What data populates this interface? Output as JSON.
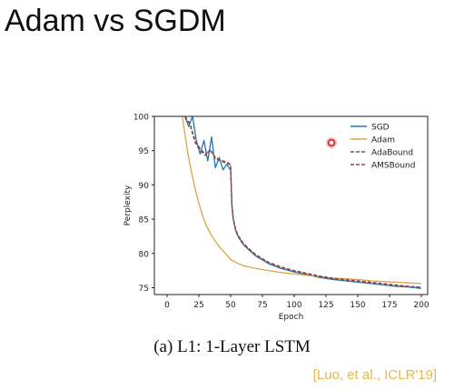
{
  "slide": {
    "title": "Adam vs SGDM",
    "caption": "(a) L1: 1-Layer LSTM",
    "citation": "[Luo, et al., ICLR'19]"
  },
  "chart_data": {
    "type": "line",
    "title": "",
    "xlabel": "Epoch",
    "ylabel": "Perplexity",
    "xlim": [
      -10,
      205
    ],
    "ylim": [
      74,
      100
    ],
    "xticks": [
      0,
      25,
      50,
      75,
      100,
      125,
      150,
      175,
      200
    ],
    "yticks": [
      75,
      80,
      85,
      90,
      95,
      100
    ],
    "legend_position": "top-right",
    "grid": false,
    "series": [
      {
        "name": "SGD",
        "color": "#1f77b4",
        "dash": "solid",
        "x": [
          14,
          17,
          20,
          23,
          26,
          29,
          32,
          35,
          38,
          41,
          44,
          47,
          49,
          50,
          51,
          52,
          54,
          56,
          60,
          65,
          70,
          80,
          90,
          100,
          110,
          120,
          130,
          140,
          150,
          160,
          170,
          180,
          190,
          200
        ],
        "y": [
          100,
          98.5,
          100,
          96.5,
          94.5,
          96.5,
          93.5,
          97,
          92.5,
          94,
          92.2,
          93,
          92.4,
          92.2,
          87,
          85,
          83.3,
          82.4,
          81.3,
          80.4,
          79.6,
          78.5,
          77.8,
          77.3,
          76.9,
          76.5,
          76.2,
          76,
          75.8,
          75.6,
          75.4,
          75.2,
          75.1,
          74.9
        ]
      },
      {
        "name": "Adam",
        "color": "#d9a54a",
        "dash": "solid",
        "x": [
          12,
          14,
          16,
          18,
          20,
          22,
          25,
          28,
          31,
          35,
          40,
          45,
          50,
          55,
          60,
          70,
          80,
          90,
          100,
          110,
          120,
          130,
          140,
          150,
          160,
          170,
          180,
          190,
          200
        ],
        "y": [
          100,
          97.5,
          95,
          93,
          91.2,
          89.5,
          87.3,
          85.5,
          84,
          82.6,
          81.2,
          80.2,
          79.1,
          78.6,
          78.2,
          77.8,
          77.5,
          77.2,
          77,
          76.8,
          76.6,
          76.4,
          76.3,
          76.2,
          76,
          75.9,
          75.8,
          75.7,
          75.6
        ]
      },
      {
        "name": "AdaBound",
        "color": "#5a5a5a",
        "dash": "dashed",
        "x": [
          14,
          18,
          22,
          26,
          30,
          34,
          38,
          42,
          46,
          49,
          50,
          51,
          52,
          54,
          56,
          60,
          65,
          70,
          80,
          90,
          100,
          110,
          120,
          130,
          140,
          150,
          160,
          170,
          180,
          190,
          200
        ],
        "y": [
          100,
          98.8,
          96.2,
          95,
          94.3,
          95.2,
          93.8,
          93.5,
          93.2,
          93,
          92.8,
          87,
          85,
          83.4,
          82.5,
          81.4,
          80.5,
          79.7,
          78.6,
          77.9,
          77.4,
          77,
          76.6,
          76.3,
          76.1,
          75.9,
          75.7,
          75.5,
          75.3,
          75.2,
          75
        ]
      },
      {
        "name": "AMSBound",
        "color": "#a04040",
        "dash": "dashed",
        "x": [
          14,
          18,
          22,
          26,
          30,
          34,
          38,
          42,
          46,
          49,
          50,
          51,
          52,
          54,
          56,
          60,
          65,
          70,
          80,
          90,
          100,
          110,
          120,
          130,
          140,
          150,
          160,
          170,
          180,
          190,
          200
        ],
        "y": [
          100,
          99,
          96.5,
          95.3,
          94.5,
          95,
          94,
          93.6,
          93.4,
          93.1,
          92.9,
          87.2,
          85.2,
          83.5,
          82.6,
          81.5,
          80.6,
          79.8,
          78.7,
          78,
          77.5,
          77.1,
          76.7,
          76.4,
          76.2,
          76,
          75.8,
          75.6,
          75.4,
          75.2,
          75.1
        ]
      }
    ]
  }
}
